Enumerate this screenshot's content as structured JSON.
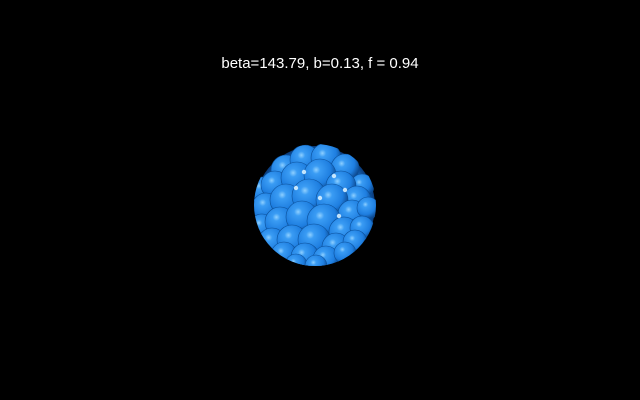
{
  "overlay": {
    "params_text": "beta=143.79, b=0.13, f = 0.94"
  },
  "scene": {
    "background_color": "#000000",
    "cluster_color": "#1e7ee0",
    "cluster_highlight_color": "#8fd0ff",
    "cluster_shadow_color": "#0a3f80"
  }
}
